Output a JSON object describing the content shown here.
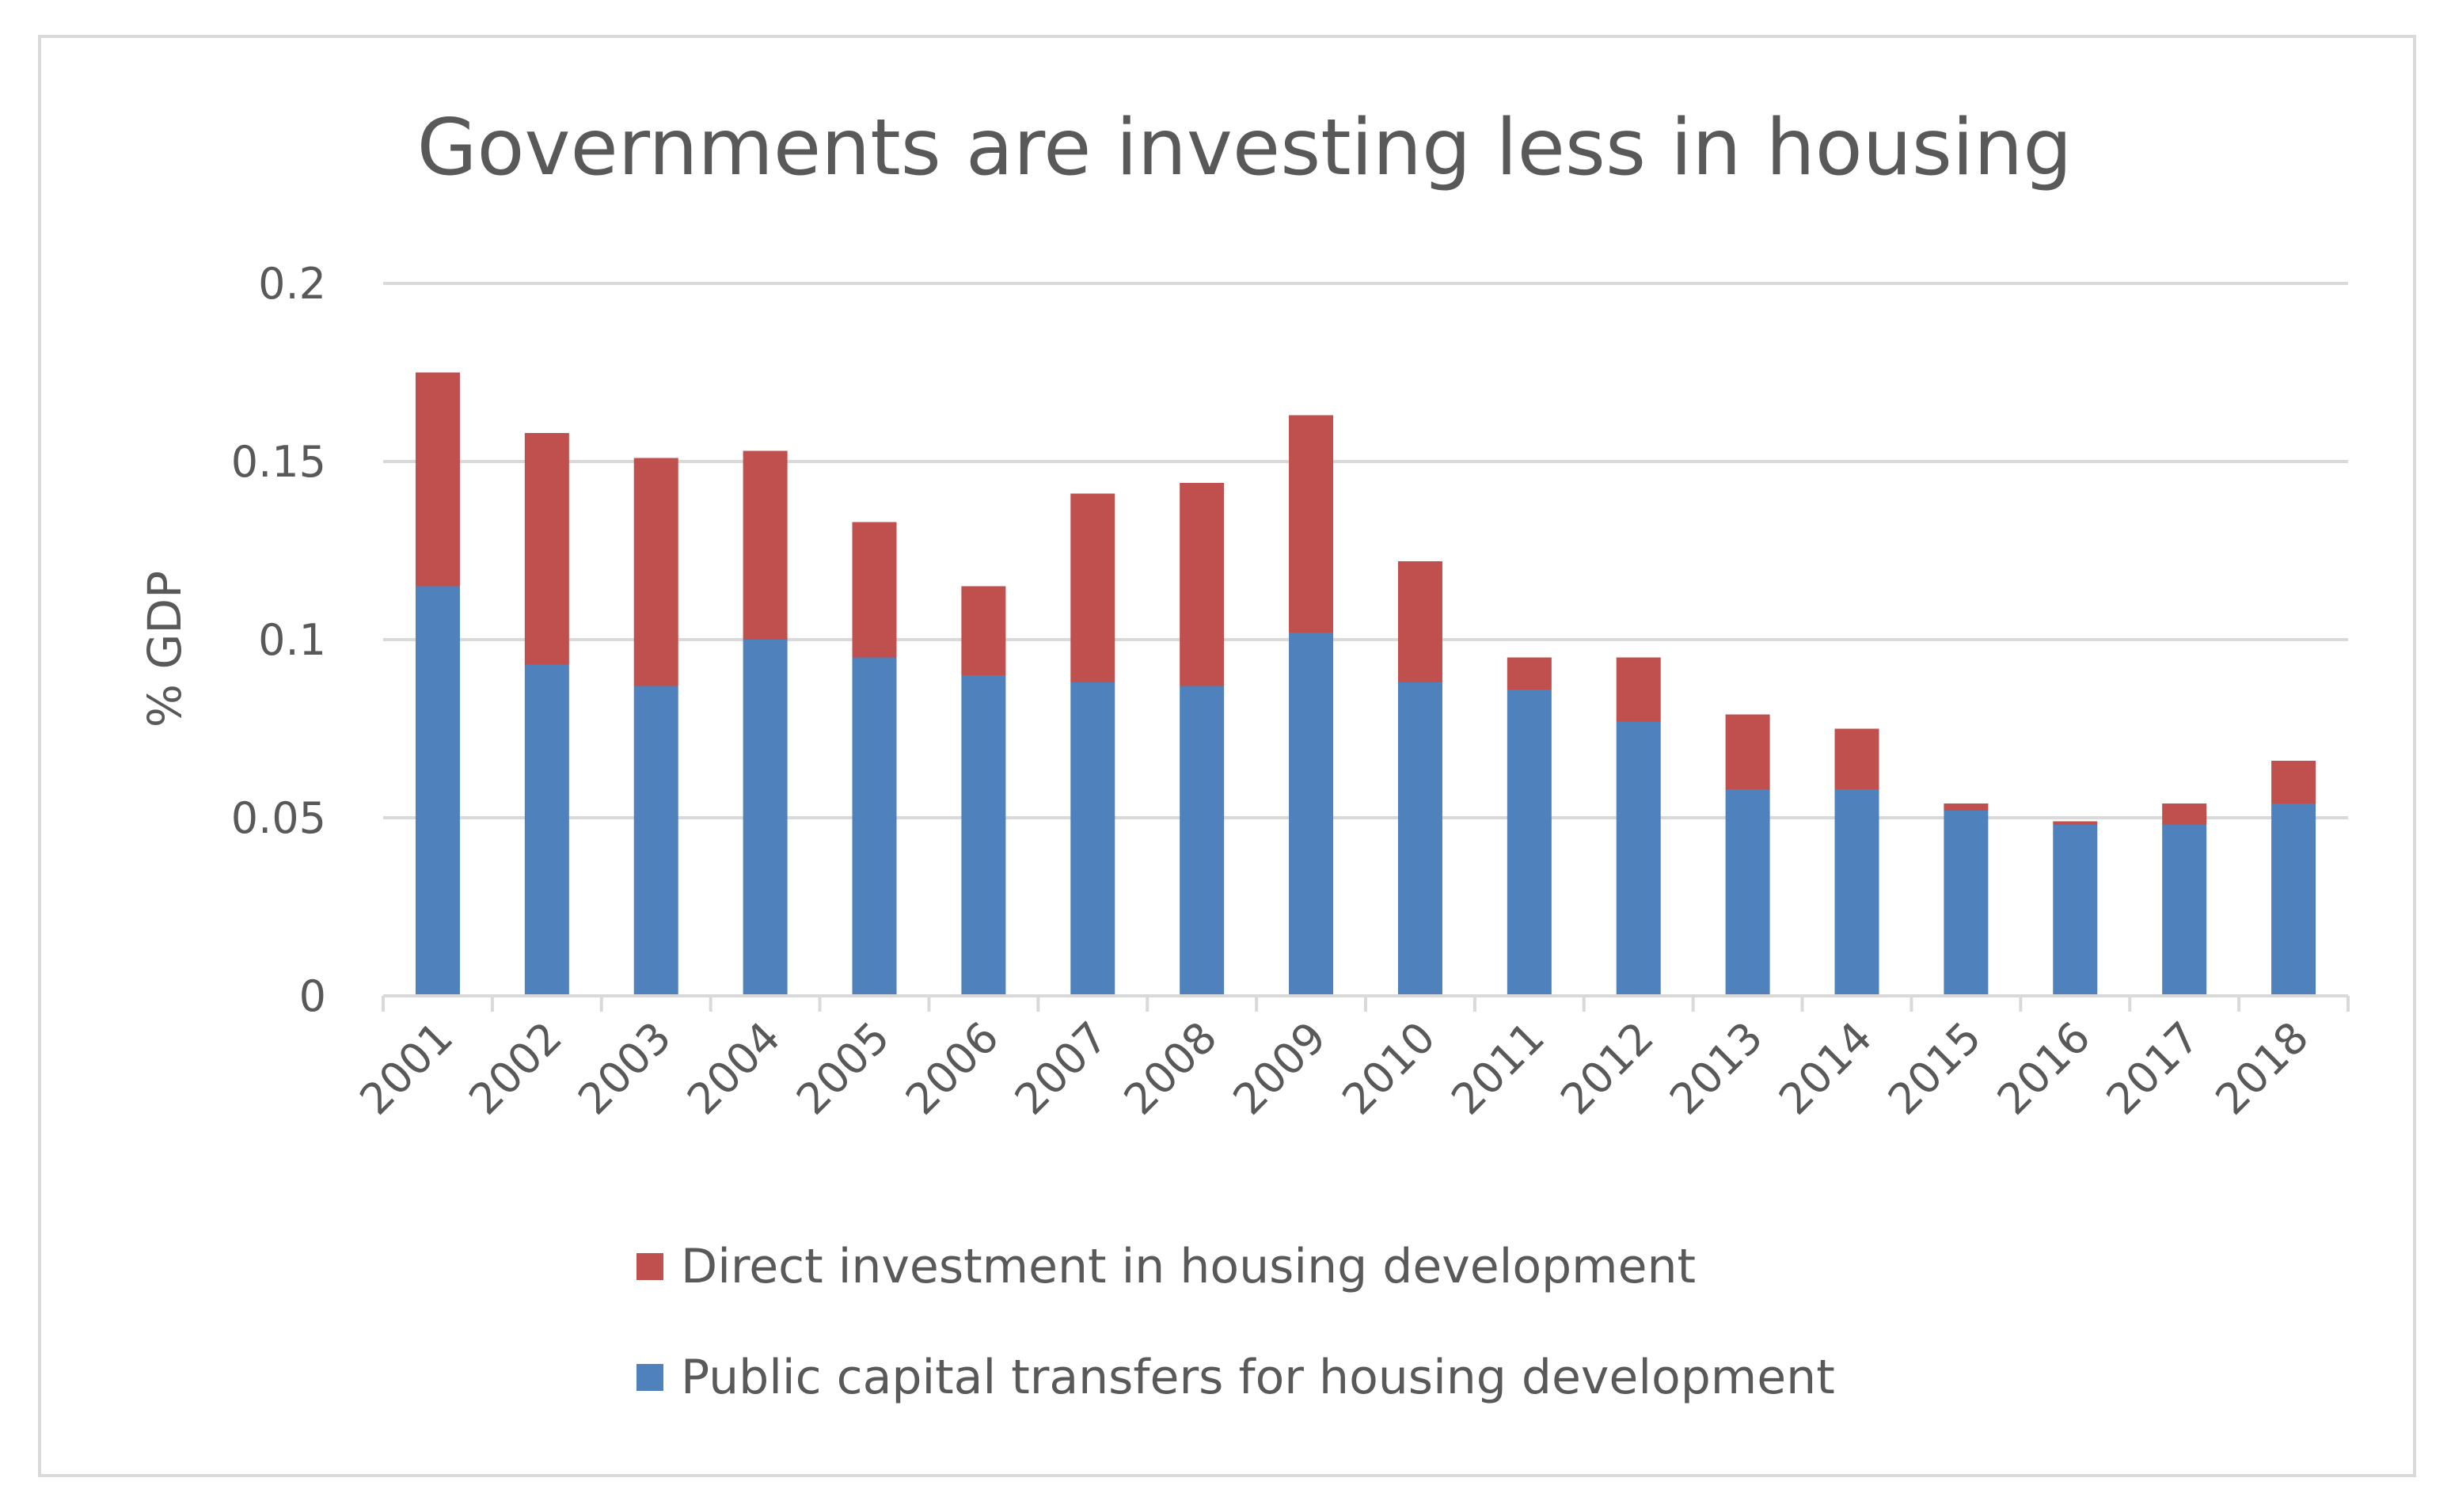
{
  "chart_data": {
    "type": "bar",
    "stacked": true,
    "title": "Governments are investing less in housing",
    "xlabel": "",
    "ylabel": "% GDP",
    "ylim": [
      0,
      0.2
    ],
    "yticks": [
      {
        "value": 0,
        "label": "0"
      },
      {
        "value": 0.05,
        "label": "0.05"
      },
      {
        "value": 0.1,
        "label": "0.1"
      },
      {
        "value": 0.15,
        "label": "0.15"
      },
      {
        "value": 0.2,
        "label": "0.2"
      }
    ],
    "grid": true,
    "legend_position": "bottom",
    "categories": [
      "2001",
      "2002",
      "2003",
      "2004",
      "2005",
      "2006",
      "2007",
      "2008",
      "2009",
      "2010",
      "2011",
      "2012",
      "2013",
      "2014",
      "2015",
      "2016",
      "2017",
      "2018"
    ],
    "series": [
      {
        "name": "Public capital transfers for housing development",
        "color": "#4f81bd",
        "values": [
          0.115,
          0.093,
          0.087,
          0.1,
          0.095,
          0.09,
          0.088,
          0.087,
          0.102,
          0.088,
          0.086,
          0.077,
          0.058,
          0.058,
          0.052,
          0.048,
          0.048,
          0.054
        ]
      },
      {
        "name": "Direct investment in housing development",
        "color": "#c0504d",
        "values": [
          0.06,
          0.065,
          0.064,
          0.053,
          0.038,
          0.025,
          0.053,
          0.057,
          0.061,
          0.034,
          0.009,
          0.018,
          0.021,
          0.017,
          0.002,
          0.001,
          0.006,
          0.012
        ]
      }
    ]
  }
}
